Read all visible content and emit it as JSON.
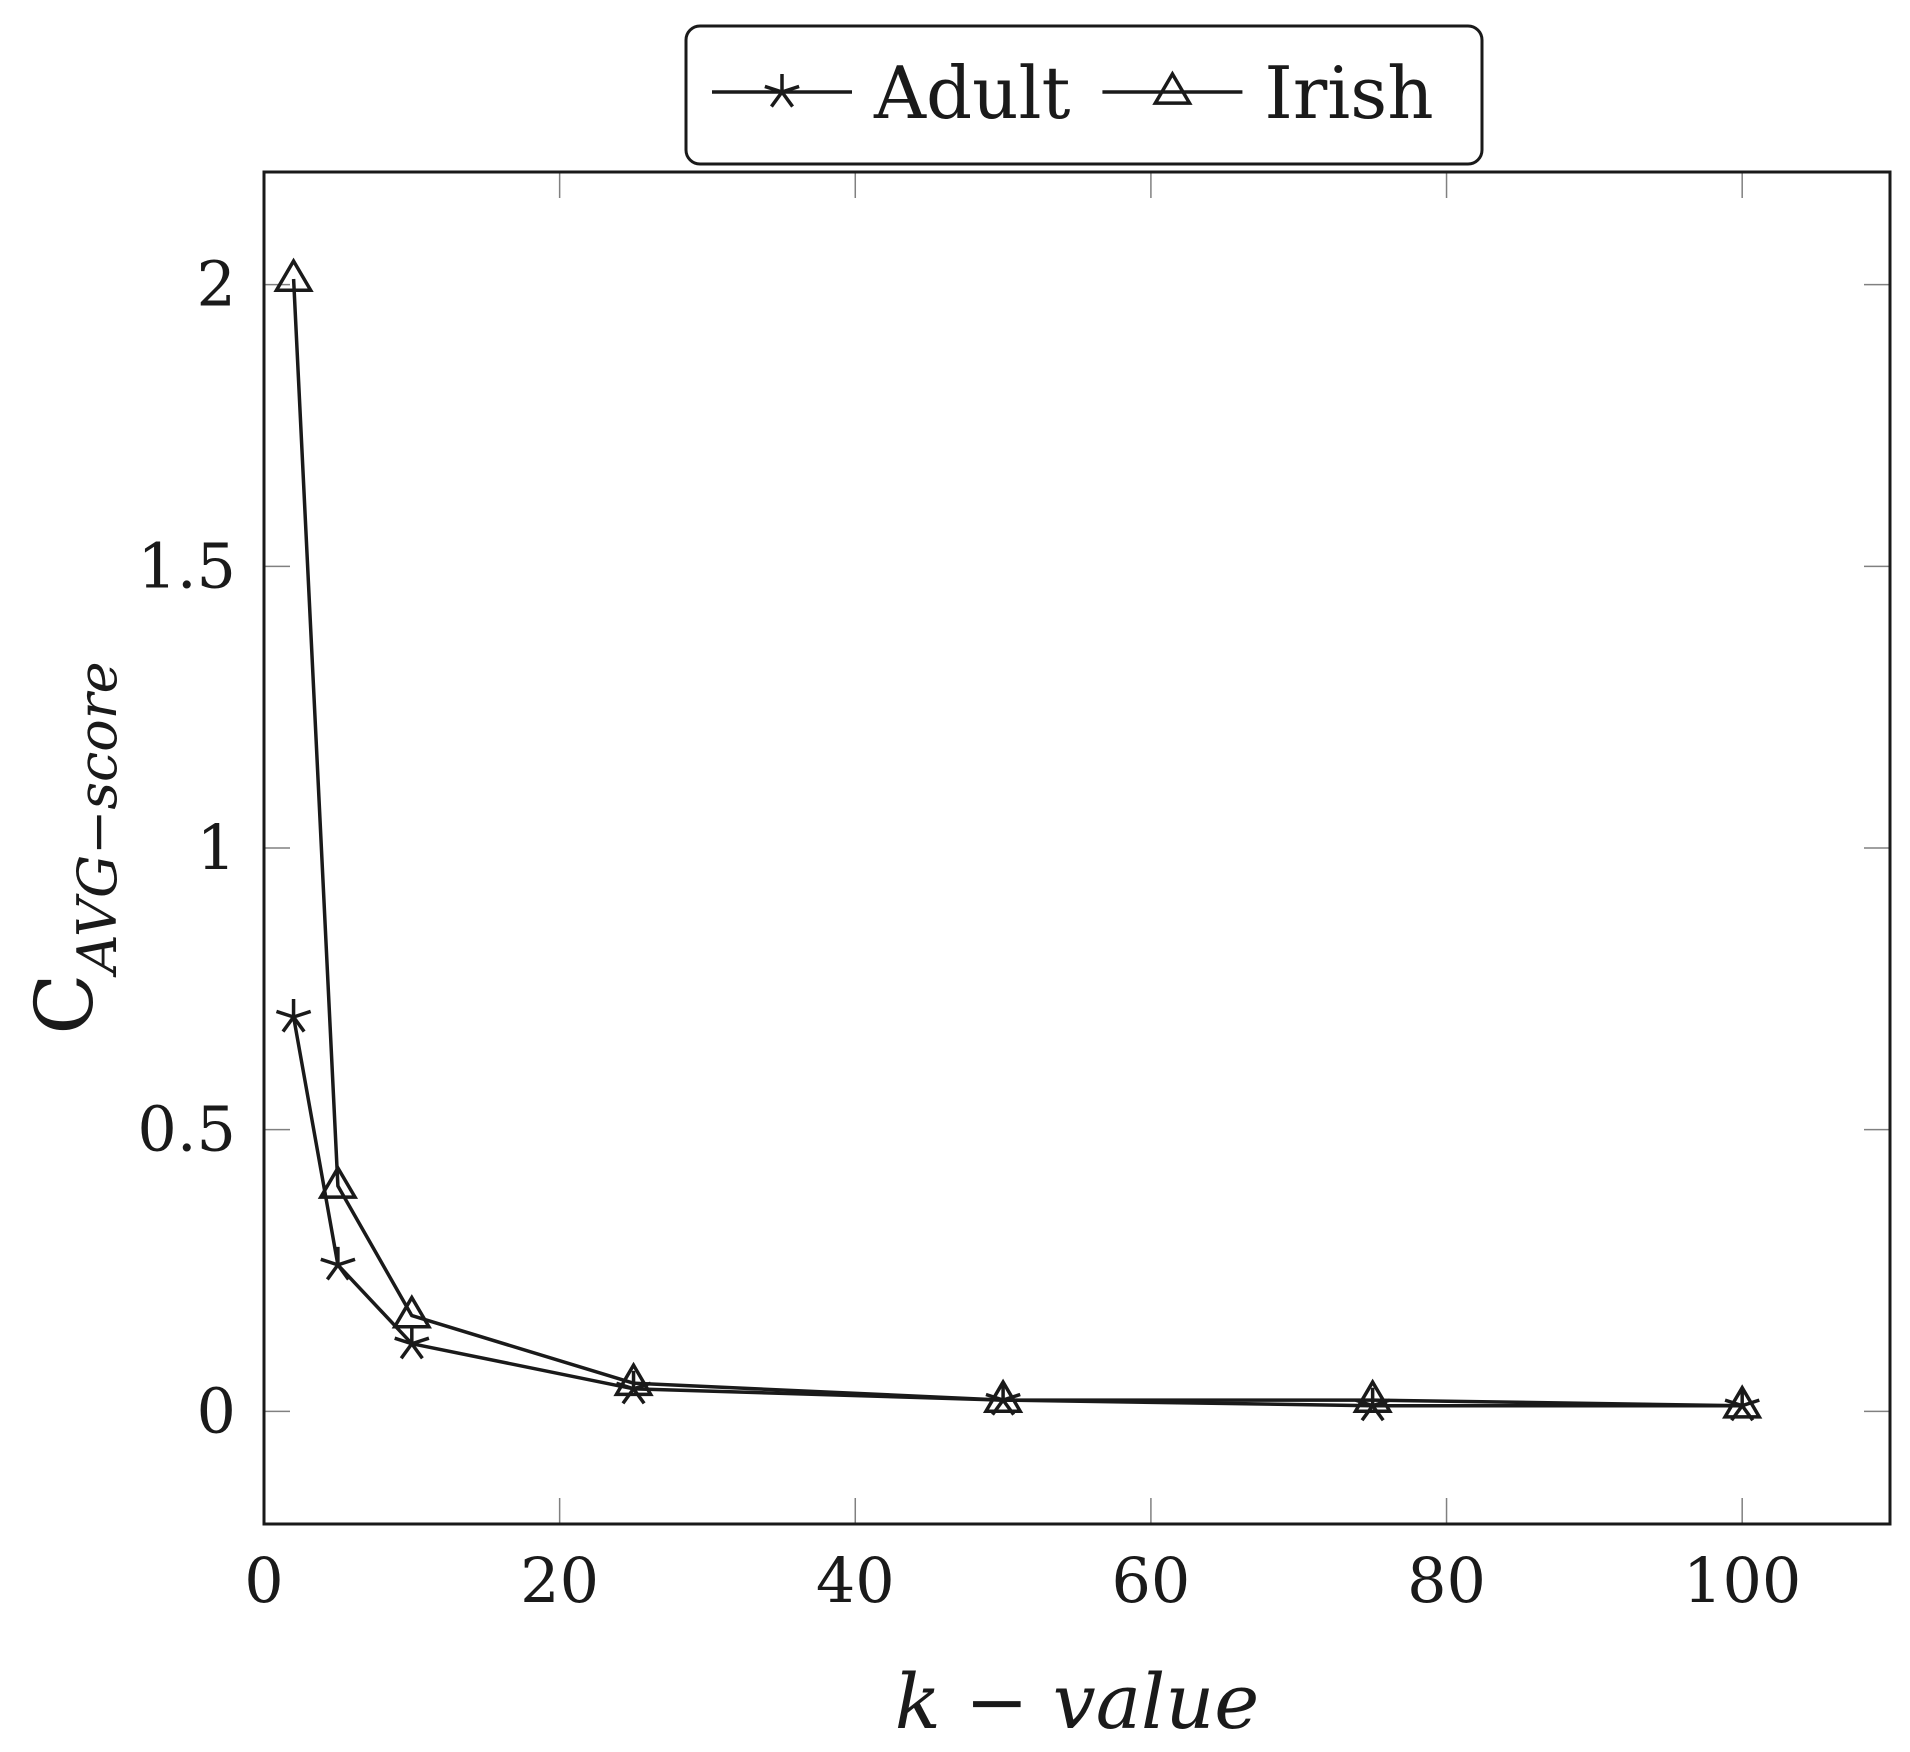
{
  "chart_data": {
    "type": "line",
    "title": "",
    "xlabel": "k − value",
    "ylabel_main": "C",
    "ylabel_sub": "AVG−score",
    "xlim": [
      0,
      110
    ],
    "ylim": [
      -0.2,
      2.2
    ],
    "x_ticks": [
      0,
      20,
      40,
      60,
      80,
      100
    ],
    "y_ticks": [
      0,
      0.5,
      1,
      1.5,
      2
    ],
    "x_tick_labels": [
      "0",
      "20",
      "40",
      "60",
      "80",
      "100"
    ],
    "y_tick_labels": [
      "0",
      "0.5",
      "1",
      "1.5",
      "2"
    ],
    "grid": false,
    "legend_position": "top-center",
    "series": [
      {
        "name": "Adult",
        "marker": "star",
        "x": [
          2,
          5,
          10,
          25,
          50,
          75,
          100
        ],
        "y": [
          0.7,
          0.26,
          0.12,
          0.04,
          0.02,
          0.01,
          0.01
        ]
      },
      {
        "name": "Irish",
        "marker": "triangle",
        "x": [
          2,
          5,
          10,
          25,
          50,
          75,
          100
        ],
        "y": [
          2.01,
          0.4,
          0.17,
          0.05,
          0.02,
          0.02,
          0.01
        ]
      }
    ]
  }
}
